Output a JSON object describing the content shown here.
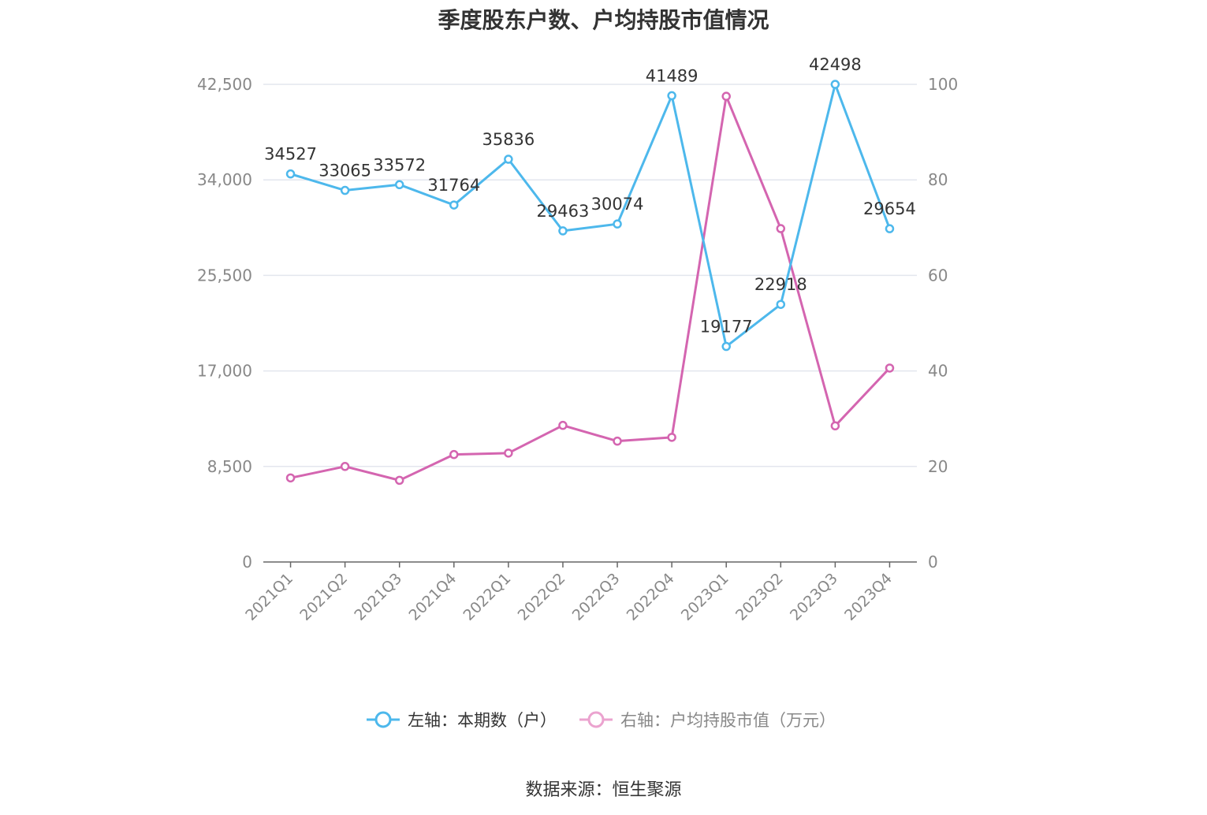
{
  "chart_data": {
    "type": "line",
    "title": "季度股东户数、户均持股市值情况",
    "categories": [
      "2021Q1",
      "2021Q2",
      "2021Q3",
      "2021Q4",
      "2022Q1",
      "2022Q2",
      "2022Q3",
      "2022Q4",
      "2023Q1",
      "2023Q2",
      "2023Q3",
      "2023Q4"
    ],
    "left_axis": {
      "ylim": [
        0,
        42500
      ],
      "ticks": [
        "0",
        "8,500",
        "17,000",
        "25,500",
        "34,000",
        "42,500"
      ]
    },
    "right_axis": {
      "ylim": [
        0,
        100
      ],
      "ticks": [
        "0",
        "20",
        "40",
        "60",
        "80",
        "100"
      ]
    },
    "grid": true,
    "legend_position": "bottom",
    "series": [
      {
        "name": "左轴：本期数（户）",
        "axis": "left",
        "color": "#4DB8EC",
        "values": [
          34527,
          33065,
          33572,
          31764,
          35836,
          29463,
          30074,
          41489,
          19177,
          22918,
          42498,
          29654
        ],
        "data_labels": [
          "34527",
          "33065",
          "33572",
          "31764",
          "35836",
          "29463",
          "30074",
          "41489",
          "19177",
          "22918",
          "42498",
          "29654"
        ]
      },
      {
        "name": "右轴：户均持股市值（万元）",
        "axis": "right",
        "color": "#D465B0",
        "legend_color": "#EBA3CF",
        "values": [
          17.6,
          20.0,
          17.1,
          22.5,
          22.8,
          28.6,
          25.3,
          26.1,
          97.5,
          69.8,
          28.5,
          40.6
        ]
      }
    ]
  },
  "source": "数据来源：恒生聚源"
}
